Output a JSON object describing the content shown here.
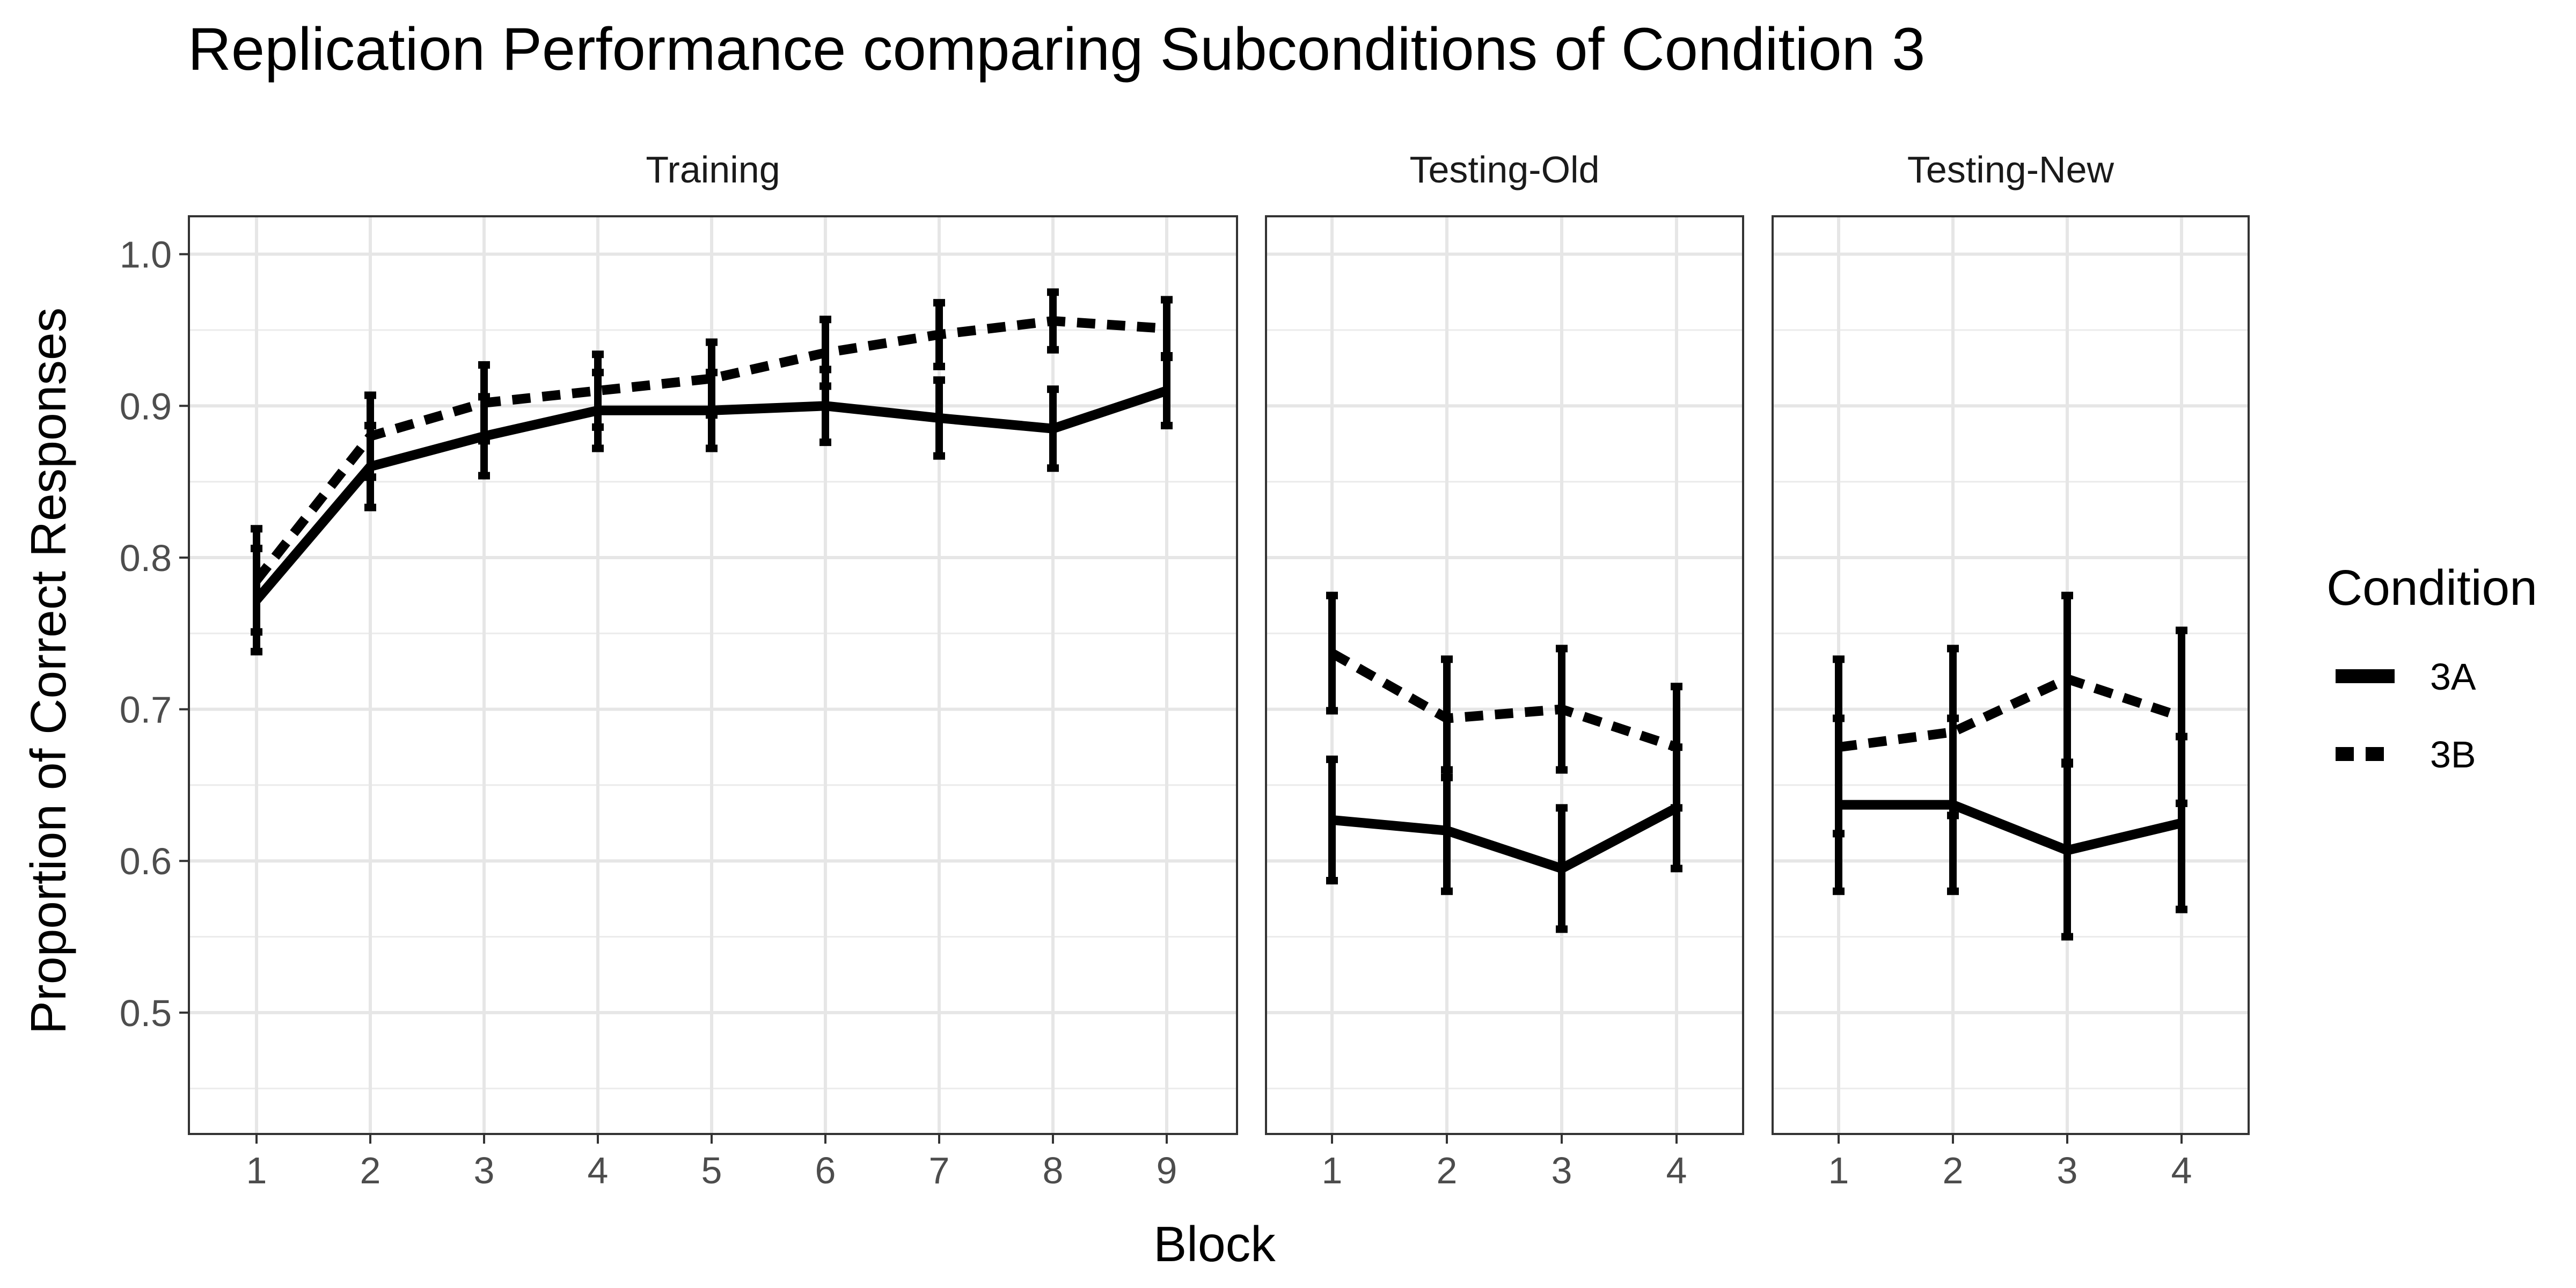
{
  "chart_data": {
    "type": "line",
    "title": "Replication Performance comparing Subconditions of Condition 3",
    "xlabel": "Block",
    "ylabel": "Proportion of Correct Responses",
    "ylim": [
      0.42,
      1.025
    ],
    "yticks": [
      "0.5",
      "0.6",
      "0.7",
      "0.8",
      "0.9",
      "1.0"
    ],
    "grid": true,
    "legend": {
      "title": "Condition",
      "position": "right",
      "entries": [
        {
          "name": "3A",
          "style": "solid"
        },
        {
          "name": "3B",
          "style": "dashed"
        }
      ]
    },
    "panels": [
      {
        "name": "Training",
        "x": [
          1,
          2,
          3,
          4,
          5,
          6,
          7,
          8,
          9
        ],
        "xticks": [
          "1",
          "2",
          "3",
          "4",
          "5",
          "6",
          "7",
          "8",
          "9"
        ],
        "series": [
          {
            "name": "3A",
            "values": [
              0.772,
              0.86,
              0.88,
              0.897,
              0.897,
              0.9,
              0.892,
              0.885,
              0.91
            ],
            "lower": [
              0.738,
              0.833,
              0.854,
              0.872,
              0.872,
              0.876,
              0.867,
              0.859,
              0.887
            ],
            "upper": [
              0.806,
              0.887,
              0.906,
              0.922,
              0.922,
              0.924,
              0.917,
              0.911,
              0.933
            ]
          },
          {
            "name": "3B",
            "values": [
              0.785,
              0.88,
              0.902,
              0.91,
              0.918,
              0.935,
              0.947,
              0.956,
              0.951
            ],
            "lower": [
              0.751,
              0.853,
              0.877,
              0.886,
              0.894,
              0.913,
              0.926,
              0.937,
              0.932
            ],
            "upper": [
              0.819,
              0.907,
              0.927,
              0.934,
              0.942,
              0.957,
              0.968,
              0.975,
              0.97
            ]
          }
        ]
      },
      {
        "name": "Testing-Old",
        "x": [
          1,
          2,
          3,
          4
        ],
        "xticks": [
          "1",
          "2",
          "3",
          "4"
        ],
        "series": [
          {
            "name": "3A",
            "values": [
              0.627,
              0.62,
              0.595,
              0.635
            ],
            "lower": [
              0.587,
              0.58,
              0.555,
              0.595
            ],
            "upper": [
              0.667,
              0.66,
              0.635,
              0.675
            ]
          },
          {
            "name": "3B",
            "values": [
              0.737,
              0.694,
              0.7,
              0.675
            ],
            "lower": [
              0.699,
              0.655,
              0.66,
              0.635
            ],
            "upper": [
              0.775,
              0.733,
              0.74,
              0.715
            ]
          }
        ]
      },
      {
        "name": "Testing-New",
        "x": [
          1,
          2,
          3,
          4
        ],
        "xticks": [
          "1",
          "2",
          "3",
          "4"
        ],
        "series": [
          {
            "name": "3A",
            "values": [
              0.637,
              0.637,
              0.607,
              0.625
            ],
            "lower": [
              0.58,
              0.58,
              0.55,
              0.568
            ],
            "upper": [
              0.694,
              0.694,
              0.664,
              0.682
            ]
          },
          {
            "name": "3B",
            "values": [
              0.675,
              0.685,
              0.72,
              0.695
            ],
            "lower": [
              0.618,
              0.63,
              0.665,
              0.638
            ],
            "upper": [
              0.733,
              0.74,
              0.775,
              0.752
            ]
          }
        ]
      }
    ]
  }
}
